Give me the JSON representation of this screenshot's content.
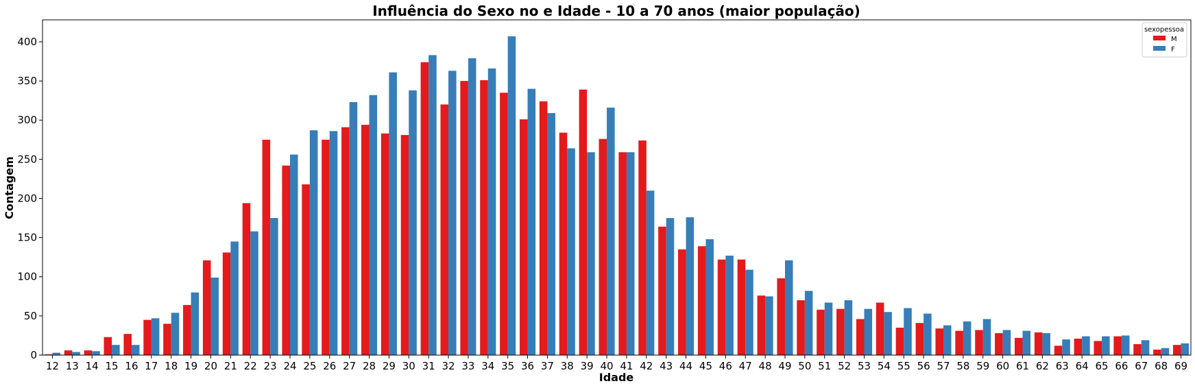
{
  "chart_data": {
    "type": "bar",
    "title": "Influência do Sexo no e Idade - 10 a 70 anos (maior população)",
    "xlabel": "Idade",
    "ylabel": "Contagem",
    "ylim": [
      0,
      428
    ],
    "yticks": [
      0,
      50,
      100,
      150,
      200,
      250,
      300,
      350,
      400
    ],
    "grid": false,
    "legend": {
      "title": "sexopessoa",
      "placement": "top-right"
    },
    "categories": [
      "12",
      "13",
      "14",
      "15",
      "16",
      "17",
      "18",
      "19",
      "20",
      "21",
      "22",
      "23",
      "24",
      "25",
      "26",
      "27",
      "28",
      "29",
      "30",
      "31",
      "32",
      "33",
      "34",
      "35",
      "36",
      "37",
      "38",
      "39",
      "40",
      "41",
      "42",
      "43",
      "44",
      "45",
      "46",
      "47",
      "48",
      "49",
      "50",
      "51",
      "52",
      "53",
      "54",
      "55",
      "56",
      "57",
      "58",
      "59",
      "60",
      "61",
      "62",
      "63",
      "64",
      "65",
      "66",
      "67",
      "68",
      "69"
    ],
    "series": [
      {
        "name": "M",
        "color": "#e41a1c",
        "values": [
          1,
          6,
          6,
          23,
          27,
          45,
          40,
          64,
          121,
          131,
          194,
          275,
          242,
          218,
          275,
          291,
          294,
          283,
          281,
          374,
          320,
          350,
          351,
          335,
          301,
          324,
          284,
          339,
          276,
          259,
          274,
          164,
          135,
          139,
          122,
          122,
          76,
          98,
          70,
          58,
          59,
          46,
          67,
          35,
          41,
          34,
          31,
          32,
          28,
          22,
          29,
          12,
          21,
          18,
          24,
          14,
          7,
          13
        ]
      },
      {
        "name": "F",
        "color": "#377eb8",
        "values": [
          3,
          4,
          5,
          13,
          13,
          47,
          54,
          80,
          99,
          145,
          158,
          175,
          256,
          287,
          286,
          323,
          332,
          361,
          338,
          383,
          363,
          379,
          366,
          407,
          340,
          309,
          264,
          259,
          316,
          259,
          210,
          175,
          176,
          148,
          127,
          109,
          75,
          121,
          82,
          67,
          70,
          59,
          55,
          60,
          53,
          38,
          43,
          46,
          32,
          31,
          28,
          20,
          24,
          24,
          25,
          19,
          9,
          15
        ]
      }
    ]
  }
}
